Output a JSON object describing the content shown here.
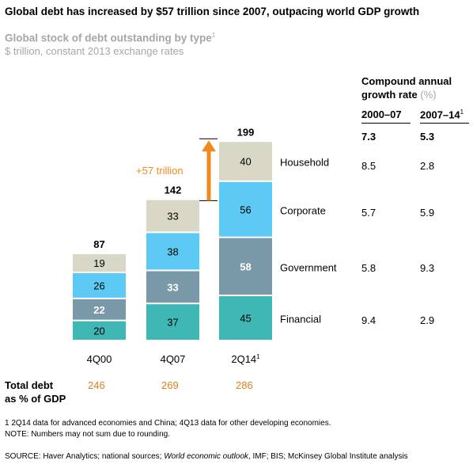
{
  "header": {
    "title": "Global debt has increased by $57 trillion since 2007, outpacing world GDP growth",
    "subtitle": "Global stock of debt outstanding by type",
    "subtitle_sup": "1",
    "units": "$ trillion, constant 2013 exchange rates"
  },
  "chart_data": {
    "type": "bar",
    "stacked": true,
    "categories": [
      "4Q00",
      "4Q07",
      "2Q14"
    ],
    "category_sup": [
      "",
      "",
      "1"
    ],
    "series": [
      {
        "name": "Financial",
        "values": [
          20,
          37,
          45
        ],
        "color": "#3fb7b5",
        "value_colors": [
          "#000000",
          "#000000",
          "#000000"
        ],
        "value_bold": [
          false,
          false,
          false
        ]
      },
      {
        "name": "Government",
        "values": [
          22,
          33,
          58
        ],
        "color": "#7a99a8",
        "value_colors": [
          "#ffffff",
          "#ffffff",
          "#ffffff"
        ],
        "value_bold": [
          true,
          true,
          true
        ]
      },
      {
        "name": "Corporate",
        "values": [
          26,
          38,
          56
        ],
        "color": "#5ccaf4",
        "value_colors": [
          "#000000",
          "#000000",
          "#000000"
        ],
        "value_bold": [
          false,
          false,
          false
        ]
      },
      {
        "name": "Household",
        "values": [
          19,
          33,
          40
        ],
        "color": "#d9d7c5",
        "value_colors": [
          "#000000",
          "#000000",
          "#000000"
        ],
        "value_bold": [
          false,
          false,
          false
        ]
      }
    ],
    "totals": [
      87,
      142,
      199
    ],
    "annotation": "+57 trillion",
    "annotation_color": "#f08a1c"
  },
  "cagr": {
    "heading_line1": "Compound annual",
    "heading_line2": "growth rate",
    "heading_pct": "(%)",
    "columns": [
      "2000–07",
      "2007–14"
    ],
    "column_sup": [
      "",
      "1"
    ],
    "totals": [
      "7.3",
      "5.3"
    ],
    "rows": [
      {
        "series": "Household",
        "values": [
          "8.5",
          "2.8"
        ]
      },
      {
        "series": "Corporate",
        "values": [
          "5.7",
          "5.9"
        ]
      },
      {
        "series": "Government",
        "values": [
          "5.8",
          "9.3"
        ]
      },
      {
        "series": "Financial",
        "values": [
          "9.4",
          "2.9"
        ]
      }
    ]
  },
  "gdp": {
    "label_line1": "Total debt",
    "label_line2": "as % of GDP",
    "values": [
      "246",
      "269",
      "286"
    ],
    "color": "#e07e1b"
  },
  "footnotes": {
    "note1": "1  2Q14 data for advanced economies and China; 4Q13 data for other developing economies.",
    "note2": "NOTE: Numbers may not sum due to rounding.",
    "source_prefix": "SOURCE:  Haver Analytics; national sources; ",
    "source_italic": "World economic outlook",
    "source_suffix": ", IMF; BIS; McKinsey Global Institute analysis"
  }
}
